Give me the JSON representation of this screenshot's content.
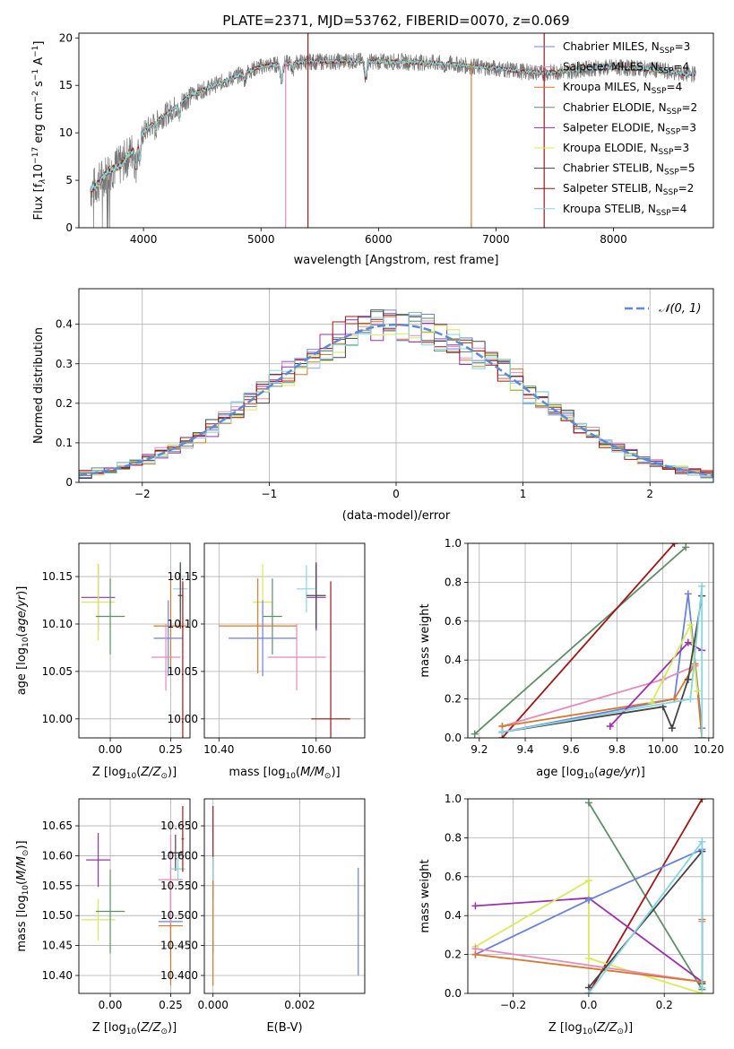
{
  "figure": {
    "title": "PLATE=2371, MJD=53762, FIBERID=0070, z=0.069"
  },
  "colors": {
    "Chabrier MILES": "#6b82d8",
    "Salpeter MILES": "#e48bbb",
    "Kroupa MILES": "#d9782c",
    "Chabrier ELODIE": "#5e8f68",
    "Salpeter ELODIE": "#9c2fb0",
    "Kroupa ELODIE": "#d7ea5b",
    "Chabrier STELIB": "#454545",
    "Salpeter STELIB": "#a01717",
    "Kroupa STELIB": "#86d6de",
    "gauss": "#5b8bd6",
    "data": "#777777"
  },
  "chart_data": [
    {
      "id": "spectrum",
      "type": "line",
      "xlabel": "wavelength [Angstrom, rest frame]",
      "ylabel": "Flux [f_λ 10^-17 erg cm^-2 s^-1 A^-1]",
      "xlim": [
        3450,
        8850
      ],
      "ylim": [
        0,
        20.5
      ],
      "xticks": [
        4000,
        5000,
        6000,
        7000,
        8000
      ],
      "yticks": [
        0,
        5,
        10,
        15,
        20
      ],
      "grid": false,
      "legend_position": "top-right",
      "legend": [
        {
          "model": "Chabrier MILES",
          "prefix": "Chabrier MILES, N",
          "nssp": 3
        },
        {
          "model": "Salpeter MILES",
          "prefix": "Salpeter MILES, N",
          "nssp": 4
        },
        {
          "model": "Kroupa MILES",
          "prefix": "Kroupa MILES, N",
          "nssp": 4
        },
        {
          "model": "Chabrier ELODIE",
          "prefix": "Chabrier ELODIE, N",
          "nssp": 2
        },
        {
          "model": "Salpeter ELODIE",
          "prefix": "Salpeter ELODIE, N",
          "nssp": 3
        },
        {
          "model": "Kroupa ELODIE",
          "prefix": "Kroupa ELODIE, N",
          "nssp": 3
        },
        {
          "model": "Chabrier STELIB",
          "prefix": "Chabrier STELIB, N",
          "nssp": 5
        },
        {
          "model": "Salpeter STELIB",
          "prefix": "Salpeter STELIB, N",
          "nssp": 2
        },
        {
          "model": "Kroupa STELIB",
          "prefix": "Kroupa STELIB, N",
          "nssp": 4
        }
      ],
      "continuum": {
        "x": [
          3550,
          3600,
          3700,
          3800,
          3900,
          4000,
          4100,
          4200,
          4300,
          4400,
          4500,
          4600,
          4700,
          4800,
          4900,
          5000,
          5200,
          5400,
          5600,
          5800,
          6000,
          6200,
          6400,
          6600,
          6800,
          7000,
          7200,
          7400,
          7600,
          7800,
          8000,
          8200,
          8400,
          8600,
          8700
        ],
        "y": [
          4.0,
          4.5,
          6.0,
          6.5,
          8.0,
          10.0,
          11.2,
          12.0,
          13.0,
          14.0,
          14.5,
          15.0,
          15.5,
          16.0,
          16.5,
          17.0,
          17.3,
          17.5,
          17.5,
          17.6,
          17.5,
          17.5,
          17.4,
          17.3,
          17.0,
          16.8,
          16.5,
          16.3,
          16.5,
          16.8,
          16.9,
          16.8,
          16.6,
          16.2,
          16.2
        ]
      },
      "absorption_features": [
        {
          "wave": 3934,
          "depth": 2.5
        },
        {
          "wave": 3969,
          "depth": 2.2
        },
        {
          "wave": 4102,
          "depth": 1.0
        },
        {
          "wave": 4304,
          "depth": 1.5
        },
        {
          "wave": 4861,
          "depth": 0.8
        },
        {
          "wave": 5175,
          "depth": 2.0
        },
        {
          "wave": 5270,
          "depth": 0.8
        },
        {
          "wave": 5892,
          "depth": 2.0
        },
        {
          "wave": 6563,
          "depth": 0.8
        }
      ],
      "vertical_spikes": [
        {
          "wave": 5210,
          "y0": 0,
          "y1": 17.5,
          "color_model": "Salpeter MILES"
        },
        {
          "wave": 5400,
          "y0": 0,
          "y1": 20.5,
          "color_model": "Salpeter STELIB"
        },
        {
          "wave": 6790,
          "y0": 0,
          "y1": 17.5,
          "color_model": "Kroupa MILES"
        },
        {
          "wave": 7410,
          "y0": 0,
          "y1": 20.5,
          "color_model": "Salpeter STELIB"
        }
      ]
    },
    {
      "id": "residuals",
      "type": "histogram",
      "xlabel": "(data-model)/error",
      "ylabel": "Normed distribution",
      "xlim": [
        -2.5,
        2.5
      ],
      "ylim": [
        0,
        0.49
      ],
      "xticks": [
        -2,
        -1,
        0,
        1,
        2
      ],
      "yticks": [
        0.0,
        0.1,
        0.2,
        0.3,
        0.4
      ],
      "bin_width": 0.1,
      "grid": true,
      "legend_position": "top-right",
      "legend": [
        {
          "label": "N(0,1)",
          "display": "𝒩(0, 1)",
          "style": "dashed"
        }
      ],
      "reference_curve": {
        "type": "gaussian",
        "mean": 0,
        "sigma": 1
      },
      "series_models": [
        "Chabrier MILES",
        "Salpeter MILES",
        "Kroupa MILES",
        "Chabrier ELODIE",
        "Salpeter ELODIE",
        "Kroupa ELODIE",
        "Chabrier STELIB",
        "Salpeter STELIB",
        "Kroupa STELIB"
      ]
    },
    {
      "id": "age_vs_Z",
      "type": "errorbar",
      "xlabel": "Z [log10(Z/Z⊙)]",
      "ylabel": "age  [log10(age/yr)]",
      "xlim": [
        -0.13,
        0.33
      ],
      "ylim": [
        9.98,
        10.185
      ],
      "xticks": [
        0.0,
        0.25
      ],
      "yticks": [
        10.0,
        10.05,
        10.1,
        10.15
      ],
      "grid": true,
      "points": [
        {
          "model": "Salpeter ELODIE",
          "x": -0.05,
          "xerr": 0.07,
          "y": 10.128,
          "yerr": 0.035
        },
        {
          "model": "Kroupa ELODIE",
          "x": -0.05,
          "xerr": 0.07,
          "y": 10.123,
          "yerr": 0.04
        },
        {
          "model": "Chabrier ELODIE",
          "x": 0.0,
          "xerr": 0.06,
          "y": 10.108,
          "yerr": 0.04
        },
        {
          "model": "Kroupa MILES",
          "x": 0.25,
          "xerr": 0.07,
          "y": 10.098,
          "yerr": 0.05
        },
        {
          "model": "Chabrier MILES",
          "x": 0.24,
          "xerr": 0.06,
          "y": 10.085,
          "yerr": 0.04
        },
        {
          "model": "Salpeter MILES",
          "x": 0.23,
          "xerr": 0.06,
          "y": 10.065,
          "yerr": 0.035
        },
        {
          "model": "Kroupa STELIB",
          "x": 0.29,
          "xerr": 0.03,
          "y": 10.137,
          "yerr": 0.025
        },
        {
          "model": "Chabrier STELIB",
          "x": 0.29,
          "xerr": 0.01,
          "y": 10.13,
          "yerr": 0.035
        },
        {
          "model": "Salpeter STELIB",
          "x": 0.3,
          "xerr": 0.005,
          "y": 10.0,
          "yerr": 0.145
        }
      ]
    },
    {
      "id": "age_vs_mass",
      "type": "errorbar",
      "xlabel": "mass [log10(M/M⊙)]",
      "ylabel": "",
      "xlim": [
        10.37,
        10.7
      ],
      "ylim": [
        9.98,
        10.185
      ],
      "xticks": [
        10.4,
        10.6
      ],
      "yticks": [
        10.0,
        10.05,
        10.1,
        10.15
      ],
      "grid": true,
      "points": [
        {
          "model": "Salpeter ELODIE",
          "x": 10.6,
          "xerr": 0.02,
          "y": 10.128,
          "yerr": 0.035
        },
        {
          "model": "Kroupa ELODIE",
          "x": 10.49,
          "xerr": 0.02,
          "y": 10.123,
          "yerr": 0.04
        },
        {
          "model": "Chabrier ELODIE",
          "x": 10.51,
          "xerr": 0.02,
          "y": 10.108,
          "yerr": 0.04
        },
        {
          "model": "Kroupa MILES",
          "x": 10.48,
          "xerr": 0.08,
          "y": 10.098,
          "yerr": 0.05
        },
        {
          "model": "Chabrier MILES",
          "x": 10.49,
          "xerr": 0.07,
          "y": 10.085,
          "yerr": 0.04
        },
        {
          "model": "Salpeter MILES",
          "x": 10.56,
          "xerr": 0.06,
          "y": 10.065,
          "yerr": 0.035
        },
        {
          "model": "Kroupa STELIB",
          "x": 10.58,
          "xerr": 0.02,
          "y": 10.137,
          "yerr": 0.025
        },
        {
          "model": "Chabrier STELIB",
          "x": 10.6,
          "xerr": 0.02,
          "y": 10.13,
          "yerr": 0.035
        },
        {
          "model": "Salpeter STELIB",
          "x": 10.63,
          "xerr": 0.04,
          "y": 10.0,
          "yerr": 0.145
        }
      ]
    },
    {
      "id": "weight_vs_age",
      "type": "line",
      "xlabel": "age  [log10(age/yr)]",
      "ylabel": "mass weight",
      "xlim": [
        9.15,
        10.22
      ],
      "ylim": [
        0,
        1
      ],
      "xticks": [
        9.2,
        9.4,
        9.6,
        9.8,
        10.0,
        10.2
      ],
      "yticks": [
        0.0,
        0.2,
        0.4,
        0.6,
        0.8,
        1.0
      ],
      "grid": true,
      "series": [
        {
          "model": "Chabrier ELODIE",
          "x": [
            9.18,
            10.1
          ],
          "y": [
            0.02,
            0.98
          ]
        },
        {
          "model": "Salpeter STELIB",
          "x": [
            9.3,
            10.05
          ],
          "y": [
            0.0,
            1.0
          ]
        },
        {
          "model": "Chabrier MILES",
          "x": [
            9.3,
            10.05,
            10.11,
            10.17
          ],
          "y": [
            0.03,
            0.2,
            0.74,
            0.05
          ]
        },
        {
          "model": "Salpeter MILES",
          "x": [
            9.3,
            10.0,
            10.14
          ],
          "y": [
            0.06,
            0.3,
            0.37
          ]
        },
        {
          "model": "Kroupa MILES",
          "x": [
            9.3,
            10.05,
            10.14,
            10.17
          ],
          "y": [
            0.06,
            0.2,
            0.38,
            0.0
          ]
        },
        {
          "model": "Salpeter ELODIE",
          "x": [
            9.77,
            10.11,
            10.17
          ],
          "y": [
            0.06,
            0.49,
            0.45
          ]
        },
        {
          "model": "Kroupa ELODIE",
          "x": [
            9.95,
            10.12,
            10.15
          ],
          "y": [
            0.18,
            0.58,
            0.24
          ]
        },
        {
          "model": "Chabrier STELIB",
          "x": [
            9.3,
            10.0,
            10.04,
            10.11,
            10.17
          ],
          "y": [
            0.03,
            0.16,
            0.05,
            0.3,
            0.73
          ]
        },
        {
          "model": "Kroupa STELIB",
          "x": [
            9.3,
            10.12,
            10.17,
            10.17
          ],
          "y": [
            0.03,
            0.2,
            0.78,
            0.0
          ]
        }
      ]
    },
    {
      "id": "mass_vs_Z",
      "type": "errorbar",
      "xlabel": "Z [log10(Z/Z⊙)]",
      "ylabel": "mass [log10(M/M⊙)]",
      "xlim": [
        -0.13,
        0.33
      ],
      "ylim": [
        10.37,
        10.695
      ],
      "xticks": [
        0.0,
        0.25
      ],
      "yticks": [
        10.4,
        10.45,
        10.5,
        10.55,
        10.6,
        10.65
      ],
      "grid": true,
      "points": [
        {
          "model": "Salpeter ELODIE",
          "x": -0.05,
          "xerr": 0.05,
          "y": 10.593,
          "yerr": 0.045
        },
        {
          "model": "Kroupa ELODIE",
          "x": -0.05,
          "xerr": 0.07,
          "y": 10.493,
          "yerr": 0.035
        },
        {
          "model": "Chabrier ELODIE",
          "x": 0.0,
          "xerr": 0.06,
          "y": 10.507,
          "yerr": 0.07
        },
        {
          "model": "Chabrier MILES",
          "x": 0.25,
          "xerr": 0.05,
          "y": 10.49,
          "yerr": 0.06
        },
        {
          "model": "Kroupa MILES",
          "x": 0.25,
          "xerr": 0.05,
          "y": 10.483,
          "yerr": 0.1
        },
        {
          "model": "Salpeter MILES",
          "x": 0.25,
          "xerr": 0.05,
          "y": 10.56,
          "yerr": 0.075
        },
        {
          "model": "Chabrier STELIB",
          "x": 0.27,
          "xerr": 0.03,
          "y": 10.605,
          "yerr": 0.03
        },
        {
          "model": "Kroupa STELIB",
          "x": 0.28,
          "xerr": 0.03,
          "y": 10.578,
          "yerr": 0.02
        },
        {
          "model": "Salpeter STELIB",
          "x": 0.3,
          "xerr": 0.005,
          "y": 10.628,
          "yerr": 0.055
        }
      ]
    },
    {
      "id": "mass_vs_EBV",
      "type": "errorbar",
      "xlabel": "E(B-V)",
      "ylabel": "",
      "xlim": [
        -0.0002,
        0.0035
      ],
      "ylim": [
        10.37,
        10.695
      ],
      "xticks": [
        0.0,
        0.002
      ],
      "yticks": [
        10.4,
        10.45,
        10.5,
        10.55,
        10.6,
        10.65
      ],
      "grid": true,
      "points": [
        {
          "model": "Salpeter STELIB",
          "x": 0.0,
          "xerr": 0.0,
          "y": 10.628,
          "yerr": 0.055
        },
        {
          "model": "Chabrier ELODIE",
          "x": 0.0,
          "xerr": 0.0,
          "y": 10.507,
          "yerr": 0.07
        },
        {
          "model": "Kroupa ELODIE",
          "x": 0.0,
          "xerr": 0.0,
          "y": 10.493,
          "yerr": 0.035
        },
        {
          "model": "Kroupa MILES",
          "x": 0.0,
          "xerr": 0.0,
          "y": 10.483,
          "yerr": 0.1
        },
        {
          "model": "Kroupa STELIB",
          "x": 0.0,
          "xerr": 0.0,
          "y": 10.578,
          "yerr": 0.02
        },
        {
          "model": "Chabrier MILES",
          "x": 0.00335,
          "xerr": 0.0,
          "y": 10.49,
          "yerr": 0.09
        }
      ]
    },
    {
      "id": "weight_vs_Z",
      "type": "line",
      "xlabel": "Z [log10(Z/Z⊙)]",
      "ylabel": "mass weight",
      "xlim": [
        -0.32,
        0.33
      ],
      "ylim": [
        0,
        1
      ],
      "xticks": [
        -0.2,
        0.0,
        0.2
      ],
      "yticks": [
        0.0,
        0.2,
        0.4,
        0.6,
        0.8,
        1.0
      ],
      "grid": true,
      "series": [
        {
          "model": "Chabrier ELODIE",
          "x": [
            0.0,
            0.3
          ],
          "y": [
            0.98,
            0.02
          ]
        },
        {
          "model": "Salpeter STELIB",
          "x": [
            0.0,
            0.3
          ],
          "y": [
            0.0,
            1.0
          ]
        },
        {
          "model": "Salpeter ELODIE",
          "x": [
            -0.3,
            0.0,
            0.3
          ],
          "y": [
            0.45,
            0.49,
            0.06
          ]
        },
        {
          "model": "Kroupa ELODIE",
          "x": [
            -0.3,
            0.0,
            0.0,
            0.3
          ],
          "y": [
            0.24,
            0.58,
            0.18,
            0.0
          ]
        },
        {
          "model": "Chabrier MILES",
          "x": [
            -0.3,
            0.0,
            0.3
          ],
          "y": [
            0.2,
            0.48,
            0.74
          ]
        },
        {
          "model": "Salpeter MILES",
          "x": [
            -0.3,
            0.3,
            0.3
          ],
          "y": [
            0.23,
            0.06,
            0.37
          ]
        },
        {
          "model": "Kroupa MILES",
          "x": [
            -0.3,
            0.3,
            0.3
          ],
          "y": [
            0.2,
            0.06,
            0.38
          ]
        },
        {
          "model": "Chabrier STELIB",
          "x": [
            0.0,
            0.3,
            0.3
          ],
          "y": [
            0.03,
            0.73,
            0.05
          ]
        },
        {
          "model": "Kroupa STELIB",
          "x": [
            0.0,
            0.3,
            0.3
          ],
          "y": [
            0.0,
            0.78,
            0.03
          ]
        }
      ]
    }
  ]
}
